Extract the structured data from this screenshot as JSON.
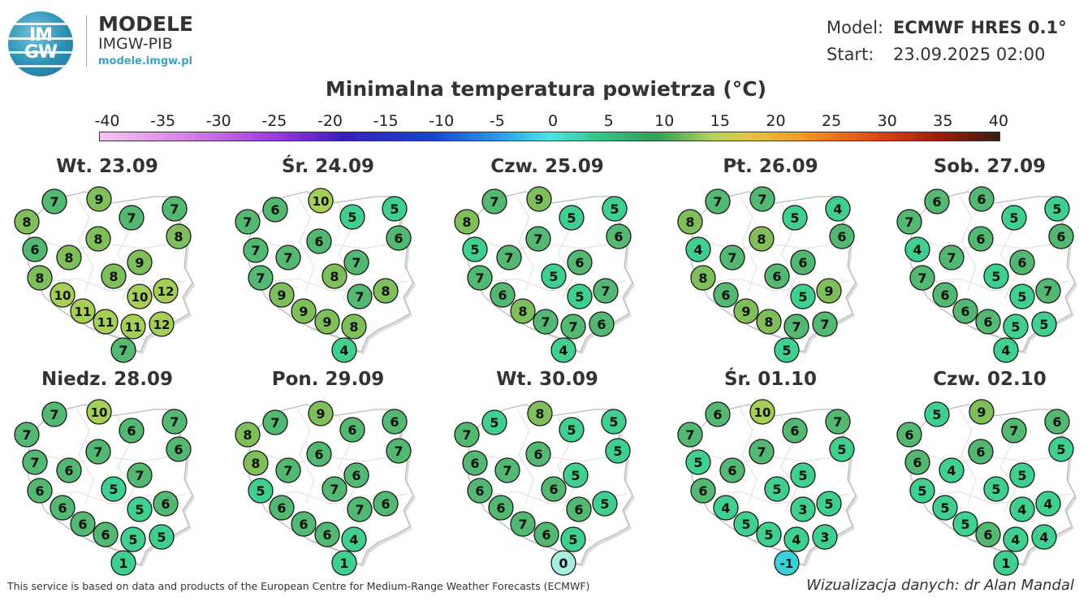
{
  "brand": {
    "logo_top": "IM",
    "logo_bottom": "GW",
    "title": "MODELE",
    "subtitle": "IMGW-PIB",
    "url": "modele.imgw.pl"
  },
  "meta": {
    "model_label": "Model:",
    "model_value": "ECMWF HRES 0.1°",
    "start_label": "Start:",
    "start_value": "23.09.2025 02:00"
  },
  "title": "Minimalna temperatura powietrza (°C)",
  "colorbar_ticks": [
    "-40",
    "-35",
    "-30",
    "-25",
    "-20",
    "-15",
    "-10",
    "-5",
    "0",
    "5",
    "10",
    "15",
    "20",
    "25",
    "30",
    "35",
    "40"
  ],
  "colors": {
    "cold": "#3ad1d9",
    "zero": "#a7eee0",
    "cool": "#3fcf8f",
    "mild": "#52b872",
    "warm": "#7fbf5b",
    "warmer": "#a6cf58"
  },
  "days": [
    {
      "title": "Wt. 23.09",
      "values": [
        7,
        9,
        7,
        7,
        8,
        8,
        6,
        8,
        8,
        9,
        8,
        8,
        10,
        10,
        12,
        11,
        11,
        11,
        12,
        7
      ]
    },
    {
      "title": "Śr. 24.09",
      "values": [
        6,
        10,
        5,
        5,
        7,
        6,
        6,
        7,
        7,
        8,
        7,
        7,
        7,
        8,
        9,
        9,
        9,
        8,
        4
      ]
    },
    {
      "title": "Czw. 25.09",
      "values": [
        7,
        9,
        5,
        5,
        8,
        6,
        5,
        7,
        7,
        6,
        7,
        5,
        6,
        5,
        7,
        8,
        7,
        7,
        6,
        4
      ]
    },
    {
      "title": "Pt. 26.09",
      "values": [
        7,
        7,
        5,
        4,
        8,
        6,
        4,
        7,
        8,
        6,
        8,
        6,
        6,
        5,
        9,
        9,
        8,
        7,
        7,
        5
      ]
    },
    {
      "title": "Sob. 27.09",
      "values": [
        6,
        6,
        5,
        5,
        7,
        6,
        4,
        7,
        6,
        6,
        7,
        5,
        6,
        5,
        7,
        6,
        6,
        5,
        5,
        4
      ]
    },
    {
      "title": "Niedz. 28.09",
      "values": [
        7,
        10,
        6,
        7,
        7,
        6,
        7,
        6,
        7,
        7,
        6,
        5,
        6,
        5,
        6,
        6,
        6,
        5,
        5,
        1
      ]
    },
    {
      "title": "Pon. 29.09",
      "values": [
        7,
        9,
        6,
        6,
        8,
        6,
        7,
        8,
        7,
        7,
        6,
        5,
        7,
        6,
        6,
        6,
        6,
        4,
        1
      ]
    },
    {
      "title": "Wt. 30.09",
      "values": [
        5,
        8,
        5,
        5,
        7,
        6,
        5,
        6,
        7,
        6,
        5,
        6,
        6,
        5,
        6,
        7,
        6,
        5,
        0
      ]
    },
    {
      "title": "Śr. 01.10",
      "values": [
        6,
        10,
        6,
        7,
        7,
        5,
        5,
        6,
        7,
        5,
        6,
        5,
        4,
        3,
        5,
        5,
        5,
        4,
        3,
        -1
      ]
    },
    {
      "title": "Czw. 02.10",
      "values": [
        5,
        9,
        7,
        6,
        6,
        5,
        6,
        4,
        6,
        5,
        5,
        5,
        5,
        4,
        4,
        5,
        6,
        4,
        4,
        1
      ]
    }
  ],
  "footer": {
    "left": "This service is based on data and products of the European Centre for Medium-Range Weather Forecasts (ECMWF)",
    "right": "Wizualizacja danych: dr Alan Mandal"
  }
}
